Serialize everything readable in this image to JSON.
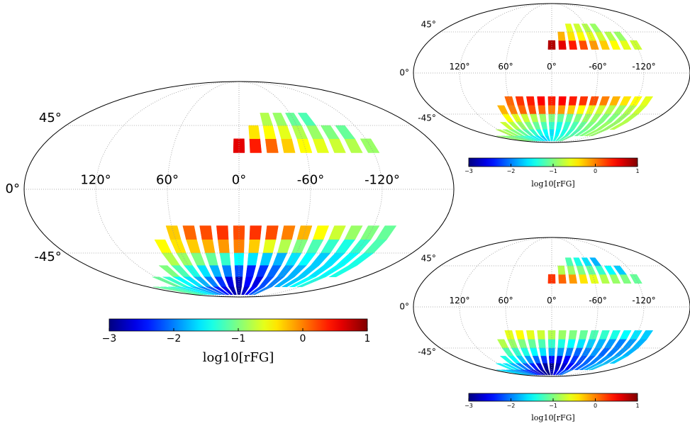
{
  "chart_data": [
    {
      "type": "mollweide",
      "colormap": "jet",
      "clim": [
        -3,
        1
      ],
      "lat_ticks": [
        {
          "value": 45,
          "label": "45°"
        },
        {
          "value": 0,
          "label": "0°"
        },
        {
          "value": -45,
          "label": "-45°"
        }
      ],
      "lon_ticks": [
        {
          "value": 120,
          "label": "120°"
        },
        {
          "value": 60,
          "label": "60°"
        },
        {
          "value": 0,
          "label": "0°"
        },
        {
          "value": -60,
          "label": "-60°"
        },
        {
          "value": -120,
          "label": "-120°"
        }
      ],
      "colorbar_ticks": [
        {
          "value": -3,
          "label": "−3"
        },
        {
          "value": -2,
          "label": "−2"
        },
        {
          "value": -1,
          "label": "−1"
        },
        0,
        1
      ],
      "colorbar_label": "log10[rFG]",
      "rows": [
        {
          "lat": 30,
          "lon": [
            0,
            -15,
            -30,
            -45,
            -60,
            -75,
            -90,
            -105,
            -120
          ],
          "values": [
            0.6,
            0.4,
            0.1,
            -0.3,
            -0.5,
            -0.6,
            -0.7,
            -0.8,
            -0.9
          ]
        },
        {
          "lat": 40,
          "lon": [
            -15,
            -30,
            -45,
            -60,
            -75,
            -90,
            -105
          ],
          "values": [
            -0.4,
            -0.5,
            -0.6,
            -0.8,
            -0.9,
            -1.0,
            -1.1
          ]
        },
        {
          "lat": 50,
          "lon": [
            -30,
            -45,
            -60,
            -75
          ],
          "values": [
            -0.8,
            -0.9,
            -1.1,
            -1.2
          ]
        },
        {
          "lat": -30,
          "lon": [
            60,
            45,
            30,
            15,
            0,
            -15,
            -30,
            -45,
            -60,
            -75,
            -90,
            -105,
            -120,
            -135
          ],
          "values": [
            -0.3,
            0.1,
            0.2,
            0.3,
            0.2,
            0.3,
            0.2,
            0,
            -0.2,
            -0.5,
            -0.7,
            -0.9,
            -1.0,
            -1.1
          ]
        },
        {
          "lat": -40,
          "lon": [
            75,
            60,
            45,
            30,
            15,
            0,
            -15,
            -30,
            -45,
            -60,
            -75,
            -90,
            -105,
            -120,
            -135
          ],
          "values": [
            -0.5,
            -0.4,
            -0.3,
            -0.2,
            -0.1,
            0,
            -0.3,
            -0.6,
            -0.8,
            -1.0,
            -1.2,
            -1.3,
            -1.4,
            -1.3,
            -1.2
          ]
        },
        {
          "lat": -50,
          "lon": [
            75,
            60,
            45,
            30,
            15,
            0,
            -15,
            -30,
            -45,
            -60,
            -75,
            -90,
            -105,
            -120,
            -135
          ],
          "values": [
            -0.8,
            -0.9,
            -1.0,
            -1.1,
            -1.3,
            -1.5,
            -1.6,
            -1.7,
            -1.8,
            -1.6,
            -1.5,
            -1.7,
            -1.6,
            -1.5,
            -1.4
          ]
        },
        {
          "lat": -60,
          "lon": [
            90,
            75,
            60,
            45,
            30,
            15,
            0,
            -15,
            -30,
            -45,
            -60,
            -75,
            -90,
            -105,
            -120,
            -135
          ],
          "values": [
            -1.0,
            -1.2,
            -1.4,
            -1.6,
            -1.8,
            -2.0,
            -2.2,
            -2.4,
            -2.3,
            -2.1,
            -1.9,
            -1.8,
            -1.7,
            -1.6,
            -1.5,
            -1.4
          ]
        },
        {
          "lat": -70,
          "lon": [
            120,
            105,
            90,
            75,
            60,
            45,
            30,
            15,
            0,
            -15,
            -30,
            -45,
            -60,
            -75,
            -90,
            -105,
            -120
          ],
          "values": [
            -1.1,
            -1.3,
            -1.5,
            -1.6,
            -1.8,
            -2.0,
            -2.3,
            -2.6,
            -2.8,
            -2.5,
            -2.6,
            -2.2,
            -2.0,
            -1.8,
            -1.7,
            -1.5,
            -1.4
          ]
        },
        {
          "lat": -80,
          "lon": [
            165,
            150,
            135,
            120,
            105,
            90,
            75,
            60,
            45,
            30,
            15,
            0,
            -15,
            -30,
            -45,
            -60
          ],
          "values": [
            -1.1,
            -1.2,
            -1.3,
            -1.5,
            -1.6,
            -1.8,
            -2.0,
            -2.2,
            -2.4,
            -2.6,
            -2.8,
            -2.9,
            -2.7,
            -2.5,
            -2.2,
            -2.0
          ]
        }
      ]
    },
    {
      "type": "mollweide",
      "colormap": "jet",
      "clim": [
        -3,
        1
      ],
      "lat_ticks": [
        {
          "value": 45,
          "label": "45°"
        },
        {
          "value": 0,
          "label": "0°"
        },
        {
          "value": -45,
          "label": "-45°"
        }
      ],
      "lon_ticks": [
        {
          "value": 120,
          "label": "120°"
        },
        {
          "value": 60,
          "label": "60°"
        },
        {
          "value": 0,
          "label": "0°"
        },
        {
          "value": -60,
          "label": "-60°"
        },
        {
          "value": -120,
          "label": "-120°"
        }
      ],
      "colorbar_ticks": [
        {
          "value": -3,
          "label": "−3"
        },
        {
          "value": -2,
          "label": "−2"
        },
        {
          "value": -1,
          "label": "−1"
        },
        0,
        1
      ],
      "colorbar_label": "log10[rFG]",
      "rows": [
        {
          "lat": 30,
          "lon": [
            0,
            -15,
            -30,
            -45,
            -60,
            -75,
            -90,
            -105,
            -120
          ],
          "values": [
            0.8,
            0.6,
            0.4,
            0.2,
            -0.1,
            -0.3,
            -0.5,
            -0.6,
            -0.7
          ]
        },
        {
          "lat": 40,
          "lon": [
            -15,
            -30,
            -45,
            -60,
            -75,
            -90,
            -105
          ],
          "values": [
            -0.2,
            -0.4,
            -0.5,
            -0.6,
            -0.7,
            -0.8,
            -0.9
          ]
        },
        {
          "lat": 50,
          "lon": [
            -30,
            -45,
            -60,
            -75
          ],
          "values": [
            -0.6,
            -0.7,
            -0.8,
            -0.9
          ]
        },
        {
          "lat": -30,
          "lon": [
            60,
            45,
            30,
            15,
            0,
            -15,
            -30,
            -45,
            -60,
            -75,
            -90,
            -105,
            -120,
            -135
          ],
          "values": [
            0.1,
            0.3,
            0.4,
            0.5,
            0.4,
            0.5,
            0.4,
            0.3,
            0.2,
            0,
            -0.2,
            -0.4,
            -0.5,
            -0.6
          ]
        },
        {
          "lat": -40,
          "lon": [
            75,
            60,
            45,
            30,
            15,
            0,
            -15,
            -30,
            -45,
            -60,
            -75,
            -90,
            -105,
            -120,
            -135
          ],
          "values": [
            -0.2,
            0,
            0.1,
            0.2,
            0.1,
            0,
            -0.1,
            -0.3,
            -0.5,
            -0.6,
            -0.7,
            -0.8,
            -0.9,
            -0.8,
            -0.7
          ]
        },
        {
          "lat": -50,
          "lon": [
            75,
            60,
            45,
            30,
            15,
            0,
            -15,
            -30,
            -45,
            -60,
            -75,
            -90,
            -105,
            -120,
            -135
          ],
          "values": [
            -0.5,
            -0.6,
            -0.7,
            -0.8,
            -0.9,
            -1.0,
            -1.1,
            -1.1,
            -1.0,
            -0.9,
            -0.9,
            -1.0,
            -1.0,
            -0.9,
            -0.8
          ]
        },
        {
          "lat": -60,
          "lon": [
            90,
            75,
            60,
            45,
            30,
            15,
            0,
            -15,
            -30,
            -45,
            -60,
            -75,
            -90,
            -105,
            -120,
            -135
          ],
          "values": [
            -0.7,
            -0.8,
            -0.9,
            -1.0,
            -1.1,
            -1.2,
            -1.3,
            -1.4,
            -1.3,
            -1.2,
            -1.1,
            -1.0,
            -1.0,
            -0.9,
            -0.9,
            -0.8
          ]
        },
        {
          "lat": -70,
          "lon": [
            120,
            105,
            90,
            75,
            60,
            45,
            30,
            15,
            0,
            -15,
            -30,
            -45,
            -60,
            -75,
            -90,
            -105,
            -120
          ],
          "values": [
            -0.8,
            -0.9,
            -1.0,
            -1.1,
            -1.2,
            -1.3,
            -1.4,
            -1.5,
            -1.6,
            -1.5,
            -1.4,
            -1.3,
            -1.2,
            -1.1,
            -1.0,
            -0.9,
            -0.9
          ]
        },
        {
          "lat": -80,
          "lon": [
            165,
            150,
            135,
            120,
            105,
            90,
            75,
            60,
            45,
            30,
            15,
            0,
            -15,
            -30,
            -45,
            -60
          ],
          "values": [
            -0.9,
            -1.0,
            -1.0,
            -1.1,
            -1.2,
            -1.3,
            -1.4,
            -1.5,
            -1.6,
            -1.7,
            -1.6,
            -1.5,
            -1.4,
            -1.3,
            -1.2,
            -1.1
          ]
        }
      ]
    },
    {
      "type": "mollweide",
      "colormap": "jet",
      "clim": [
        -3,
        1
      ],
      "lat_ticks": [
        {
          "value": 45,
          "label": "45°"
        },
        {
          "value": 0,
          "label": "0°"
        },
        {
          "value": -45,
          "label": "-45°"
        }
      ],
      "lon_ticks": [
        {
          "value": 120,
          "label": "120°"
        },
        {
          "value": 60,
          "label": "60°"
        },
        {
          "value": 0,
          "label": "0°"
        },
        {
          "value": -60,
          "label": "-60°"
        },
        {
          "value": -120,
          "label": "-120°"
        }
      ],
      "colorbar_ticks": [
        {
          "value": -3,
          "label": "−3"
        },
        {
          "value": -2,
          "label": "−2"
        },
        {
          "value": -1,
          "label": "−1"
        },
        0,
        1
      ],
      "colorbar_label": "log10[rFG]",
      "rows": [
        {
          "lat": 30,
          "lon": [
            0,
            -15,
            -30,
            -45,
            -60,
            -75,
            -90,
            -105,
            -120
          ],
          "values": [
            0.3,
            0.1,
            -0.1,
            -0.4,
            -0.6,
            -0.8,
            -0.9,
            -1.0,
            -1.1
          ]
        },
        {
          "lat": 40,
          "lon": [
            -15,
            -30,
            -45,
            -60,
            -75,
            -90,
            -105
          ],
          "values": [
            -0.8,
            -0.9,
            -1.0,
            -1.1,
            -1.3,
            -1.5,
            -1.7
          ]
        },
        {
          "lat": 50,
          "lon": [
            -30,
            -45,
            -60,
            -75
          ],
          "values": [
            -1.2,
            -1.4,
            -1.6,
            -1.8
          ]
        },
        {
          "lat": -30,
          "lon": [
            60,
            45,
            30,
            15,
            0,
            -15,
            -30,
            -45,
            -60,
            -75,
            -90,
            -105,
            -120,
            -135
          ],
          "values": [
            -0.6,
            -0.5,
            -0.6,
            -0.7,
            -0.8,
            -0.9,
            -1.0,
            -1.1,
            -1.2,
            -1.3,
            -1.4,
            -1.5,
            -1.6,
            -1.7
          ]
        },
        {
          "lat": -40,
          "lon": [
            75,
            60,
            45,
            30,
            15,
            0,
            -15,
            -30,
            -45,
            -60,
            -75,
            -90,
            -105,
            -120,
            -135
          ],
          "values": [
            -0.8,
            -0.9,
            -1.0,
            -1.1,
            -1.2,
            -1.3,
            -1.4,
            -1.5,
            -1.6,
            -1.7,
            -1.8,
            -1.9,
            -2.0,
            -1.9,
            -1.8
          ]
        },
        {
          "lat": -50,
          "lon": [
            75,
            60,
            45,
            30,
            15,
            0,
            -15,
            -30,
            -45,
            -60,
            -75,
            -90,
            -105,
            -120,
            -135
          ],
          "values": [
            -1.2,
            -1.3,
            -1.4,
            -1.5,
            -1.6,
            -1.8,
            -1.9,
            -2.0,
            -2.1,
            -2.0,
            -1.9,
            -2.1,
            -2.0,
            -1.9,
            -1.8
          ]
        },
        {
          "lat": -60,
          "lon": [
            90,
            75,
            60,
            45,
            30,
            15,
            0,
            -15,
            -30,
            -45,
            -60,
            -75,
            -90,
            -105,
            -120,
            -135
          ],
          "values": [
            -1.4,
            -1.5,
            -1.7,
            -1.9,
            -2.1,
            -2.3,
            -2.5,
            -2.6,
            -2.5,
            -2.3,
            -2.2,
            -2.1,
            -2.0,
            -1.9,
            -1.8,
            -1.7
          ]
        },
        {
          "lat": -70,
          "lon": [
            120,
            105,
            90,
            75,
            60,
            45,
            30,
            15,
            0,
            -15,
            -30,
            -45,
            -60,
            -75,
            -90,
            -105,
            -120
          ],
          "values": [
            -1.5,
            -1.6,
            -1.8,
            -2.0,
            -2.2,
            -2.4,
            -2.7,
            -2.9,
            -3.0,
            -2.8,
            -2.7,
            -2.5,
            -2.3,
            -2.1,
            -2.0,
            -1.8,
            -1.7
          ]
        },
        {
          "lat": -80,
          "lon": [
            165,
            150,
            135,
            120,
            105,
            90,
            75,
            60,
            45,
            30,
            15,
            0,
            -15,
            -30,
            -45,
            -60
          ],
          "values": [
            -1.6,
            -1.7,
            -1.8,
            -1.9,
            -2.0,
            -2.2,
            -2.4,
            -2.6,
            -2.8,
            -2.9,
            -3.0,
            -2.8,
            -2.6,
            -2.4,
            -2.2,
            -2.0
          ]
        }
      ]
    }
  ]
}
